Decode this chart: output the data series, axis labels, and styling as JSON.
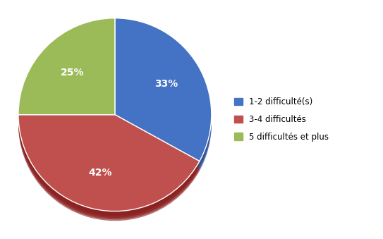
{
  "labels": [
    "1-2 difficulté(s)",
    "3-4 difficultés",
    "5 difficultés et plus"
  ],
  "values": [
    33,
    42,
    25
  ],
  "colors": [
    "#4472C4",
    "#C0504D",
    "#9BBB59"
  ],
  "shadow_colors": [
    "#2E5096",
    "#8B2020",
    "#6B8A28"
  ],
  "pct_labels": [
    "33%",
    "42%",
    "25%"
  ],
  "background_color": "#FFFFFF",
  "legend_fontsize": 8.5,
  "pct_fontsize": 10,
  "startangle": 90
}
